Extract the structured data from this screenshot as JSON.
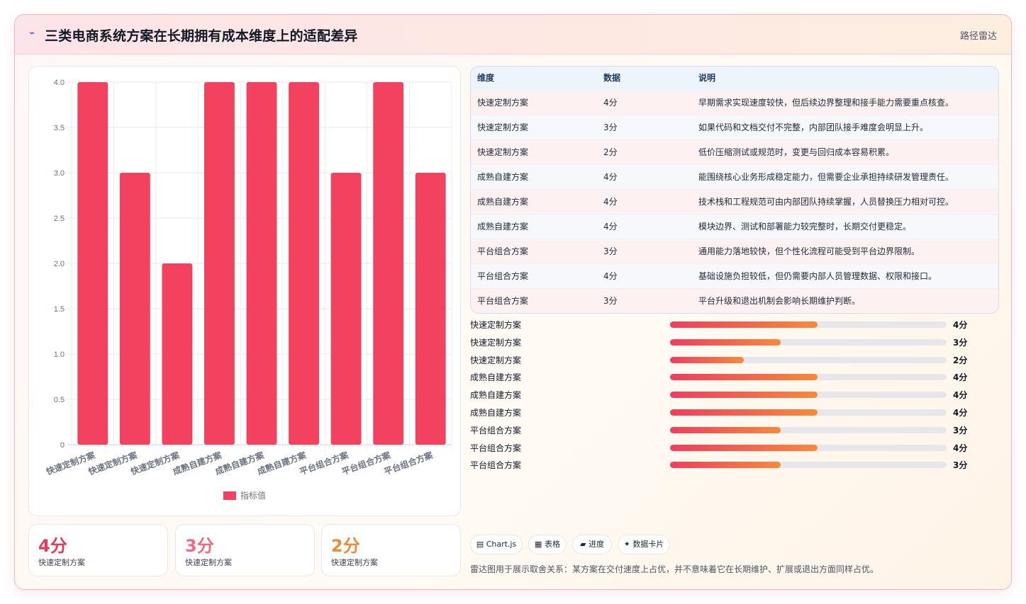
{
  "header": {
    "icon": "lightning-icon",
    "title": "三类电商系统方案在长期拥有成本维度上的适配差异",
    "tag": "路径雷达"
  },
  "chart_data": {
    "type": "bar",
    "categories": [
      "快速定制方案",
      "快速定制方案",
      "快速定制方案",
      "成熟自建方案",
      "成熟自建方案",
      "成熟自建方案",
      "平台组合方案",
      "平台组合方案",
      "平台组合方案"
    ],
    "series": [
      {
        "name": "指标值",
        "values": [
          4,
          3,
          2,
          4,
          4,
          4,
          3,
          4,
          3
        ],
        "color": "#f2425f"
      }
    ],
    "ylim": [
      0,
      4.0
    ],
    "yticks": [
      "0",
      "0.5",
      "1.0",
      "1.5",
      "2.0",
      "2.5",
      "3.0",
      "3.5",
      "4.0"
    ],
    "legend_position": "bottom",
    "grid": true
  },
  "table": {
    "headers": [
      "维度",
      "数据",
      "说明"
    ],
    "rows": [
      {
        "dim": "快速定制方案",
        "val": "4分",
        "desc": "早期需求实现速度较快，但后续边界整理和接手能力需要重点核查。"
      },
      {
        "dim": "快速定制方案",
        "val": "3分",
        "desc": "如果代码和文档交付不完整，内部团队接手难度会明显上升。"
      },
      {
        "dim": "快速定制方案",
        "val": "2分",
        "desc": "低价压缩测试或规范时，变更与回归成本容易积累。"
      },
      {
        "dim": "成熟自建方案",
        "val": "4分",
        "desc": "能围绕核心业务形成稳定能力，但需要企业承担持续研发管理责任。"
      },
      {
        "dim": "成熟自建方案",
        "val": "4分",
        "desc": "技术栈和工程规范可由内部团队持续掌握，人员替换压力相对可控。"
      },
      {
        "dim": "成熟自建方案",
        "val": "4分",
        "desc": "模块边界、测试和部署能力较完整时，长期交付更稳定。"
      },
      {
        "dim": "平台组合方案",
        "val": "3分",
        "desc": "通用能力落地较快，但个性化流程可能受到平台边界限制。"
      },
      {
        "dim": "平台组合方案",
        "val": "4分",
        "desc": "基础设施负担较低，但仍需要内部人员管理数据、权限和接口。"
      },
      {
        "dim": "平台组合方案",
        "val": "3分",
        "desc": "平台升级和退出机制会影响长期维护判断。"
      }
    ]
  },
  "progress": {
    "max": 7.5,
    "items": [
      {
        "label": "快速定制方案",
        "value": 4,
        "display": "4分"
      },
      {
        "label": "快速定制方案",
        "value": 3,
        "display": "3分"
      },
      {
        "label": "快速定制方案",
        "value": 2,
        "display": "2分"
      },
      {
        "label": "成熟自建方案",
        "value": 4,
        "display": "4分"
      },
      {
        "label": "成熟自建方案",
        "value": 4,
        "display": "4分"
      },
      {
        "label": "成熟自建方案",
        "value": 4,
        "display": "4分"
      },
      {
        "label": "平台组合方案",
        "value": 3,
        "display": "3分"
      },
      {
        "label": "平台组合方案",
        "value": 4,
        "display": "4分"
      },
      {
        "label": "平台组合方案",
        "value": 3,
        "display": "3分"
      }
    ]
  },
  "kpis": [
    {
      "value": "4分",
      "label": "快速定制方案",
      "color": "#e8395a"
    },
    {
      "value": "3分",
      "label": "快速定制方案",
      "color": "#ef6a7e"
    },
    {
      "value": "2分",
      "label": "快速定制方案",
      "color": "#f08a3a"
    }
  ],
  "chips": [
    {
      "icon": "chart-icon",
      "glyph": "▤",
      "label": "Chart.js"
    },
    {
      "icon": "table-icon",
      "glyph": "▦",
      "label": "表格"
    },
    {
      "icon": "progress-icon",
      "glyph": "▰",
      "label": "进度"
    },
    {
      "icon": "sparkle-icon",
      "glyph": "✦",
      "label": "数据卡片"
    }
  ],
  "note": "雷达图用于展示取舍关系：某方案在交付速度上占优，并不意味着它在长期维护、扩展或退出方面同样占优。"
}
